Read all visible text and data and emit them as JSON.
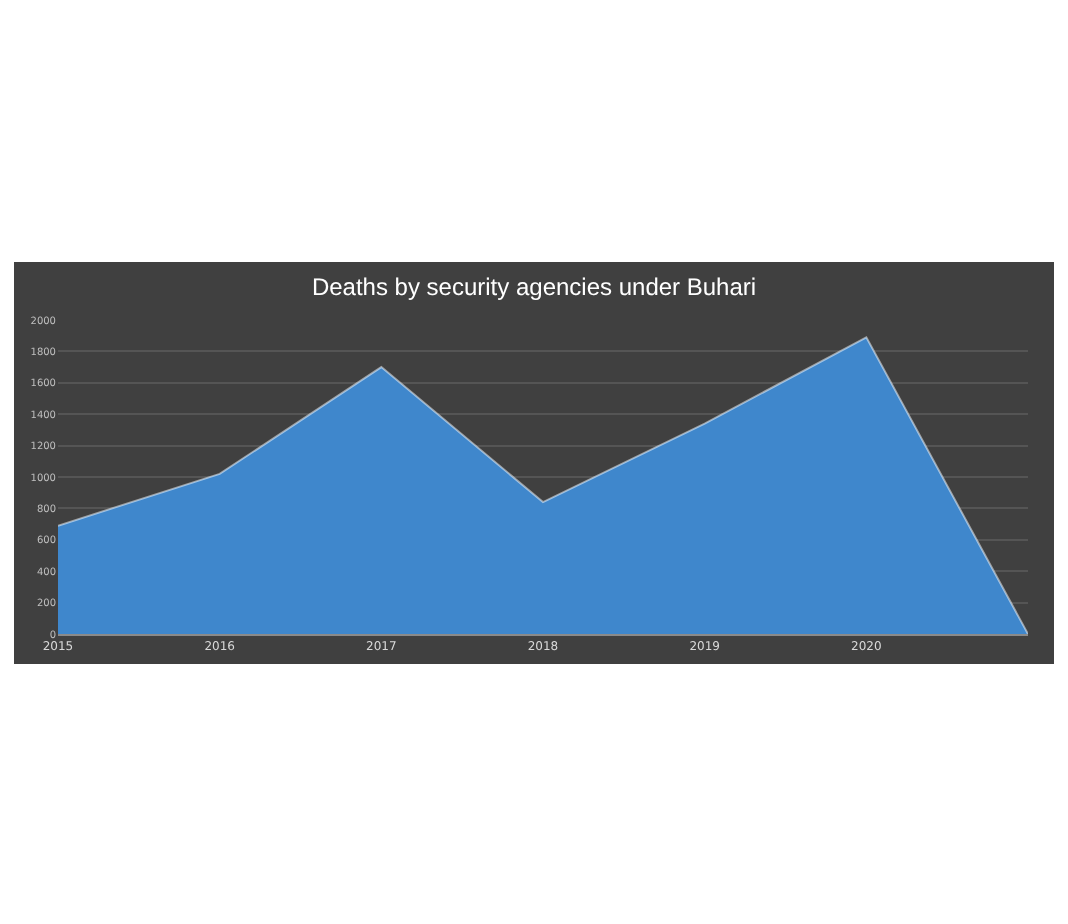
{
  "chart_data": {
    "type": "area",
    "title": "Deaths by security agencies under Buhari",
    "categories": [
      "2015",
      "2016",
      "2017",
      "2018",
      "2019",
      "2020",
      null
    ],
    "series": [
      {
        "color": "#3f87cc",
        "values": [
          690,
          1020,
          1700,
          840,
          1340,
          1890,
          0
        ]
      }
    ],
    "ylim": [
      0,
      2000
    ],
    "yticks": [
      0,
      200,
      400,
      600,
      800,
      1000,
      1200,
      1400,
      1600,
      1800,
      2000
    ],
    "grid": "y"
  }
}
